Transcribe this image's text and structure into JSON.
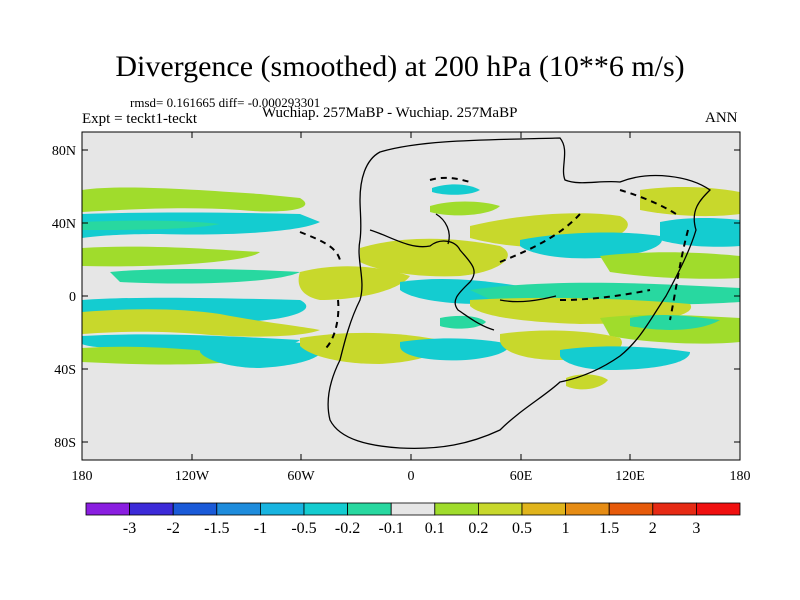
{
  "title": "Divergence (smoothed) at 200 hPa (10**6 m/s)",
  "stats": "rmsd= 0.161665 diff= -0.000293301",
  "experiment": "Expt = teckt1-teckt",
  "subtitle": "Wuchiap. 257MaBP - Wuchiap. 257MaBP",
  "season": "ANN",
  "map": {
    "lat_labels": [
      "80N",
      "40N",
      "0",
      "40S",
      "80S"
    ],
    "lon_labels": [
      "180",
      "120W",
      "60W",
      "0",
      "60E",
      "120E",
      "180"
    ]
  },
  "colorbar": {
    "labels": [
      "-3",
      "-2",
      "-1.5",
      "-1",
      "-0.5",
      "-0.2",
      "-0.1",
      "0.1",
      "0.2",
      "0.5",
      "1",
      "1.5",
      "2",
      "3"
    ],
    "colors": [
      "#8a1ee0",
      "#3c2ad8",
      "#1a5ad8",
      "#1e8cdc",
      "#18b4e0",
      "#14ccd0",
      "#28d8a0",
      "#e6e6e6",
      "#a0dc2c",
      "#c8d82c",
      "#e0b41c",
      "#e68c14",
      "#e65a0a",
      "#e62a14",
      "#f01010"
    ]
  }
}
